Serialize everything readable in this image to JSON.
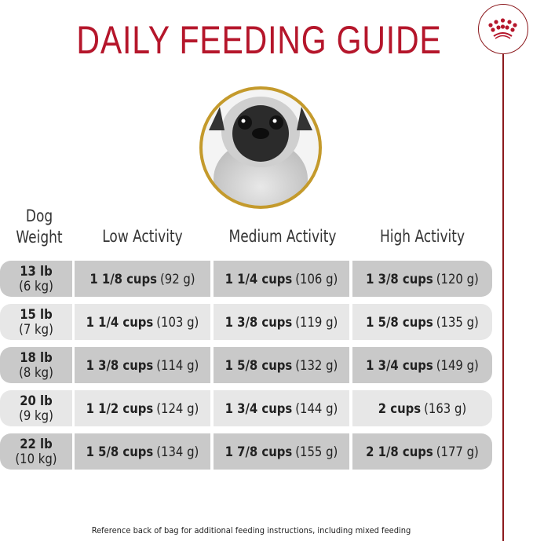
{
  "title": "DAILY FEEDING GUIDE",
  "brand_logo": "crown-icon",
  "colors": {
    "accent": "#b5162b",
    "logo": "#8c1a1e",
    "row_dark": "#c9c9c9",
    "row_light": "#e7e7e7",
    "photo_border": "#c49a2c"
  },
  "table": {
    "headers": {
      "weight_line1": "Dog",
      "weight_line2": "Weight",
      "low": "Low Activity",
      "medium": "Medium Activity",
      "high": "High Activity"
    },
    "rows": [
      {
        "lb": "13 lb",
        "kg": "(6 kg)",
        "low": {
          "cups": "1 1/8 cups",
          "g": "(92 g)"
        },
        "medium": {
          "cups": "1 1/4 cups",
          "g": "(106 g)"
        },
        "high": {
          "cups": "1 3/8 cups",
          "g": "(120 g)"
        }
      },
      {
        "lb": "15 lb",
        "kg": "(7 kg)",
        "low": {
          "cups": "1 1/4 cups",
          "g": "(103 g)"
        },
        "medium": {
          "cups": "1 3/8 cups",
          "g": "(119 g)"
        },
        "high": {
          "cups": "1 5/8 cups",
          "g": "(135 g)"
        }
      },
      {
        "lb": "18 lb",
        "kg": "(8 kg)",
        "low": {
          "cups": "1 3/8 cups",
          "g": "(114 g)"
        },
        "medium": {
          "cups": "1 5/8 cups",
          "g": "(132 g)"
        },
        "high": {
          "cups": "1 3/4 cups",
          "g": "(149 g)"
        }
      },
      {
        "lb": "20 lb",
        "kg": "(9 kg)",
        "low": {
          "cups": "1 1/2 cups",
          "g": "(124 g)"
        },
        "medium": {
          "cups": "1 3/4 cups",
          "g": "(144 g)"
        },
        "high": {
          "cups": "2 cups",
          "g": "(163 g)"
        }
      },
      {
        "lb": "22 lb",
        "kg": "(10 kg)",
        "low": {
          "cups": "1 5/8 cups",
          "g": "(134 g)"
        },
        "medium": {
          "cups": "1 7/8 cups",
          "g": "(155 g)"
        },
        "high": {
          "cups": "2 1/8 cups",
          "g": "(177 g)"
        }
      }
    ]
  },
  "footnote": "Reference back of bag for additional feeding instructions, including mixed feeding"
}
